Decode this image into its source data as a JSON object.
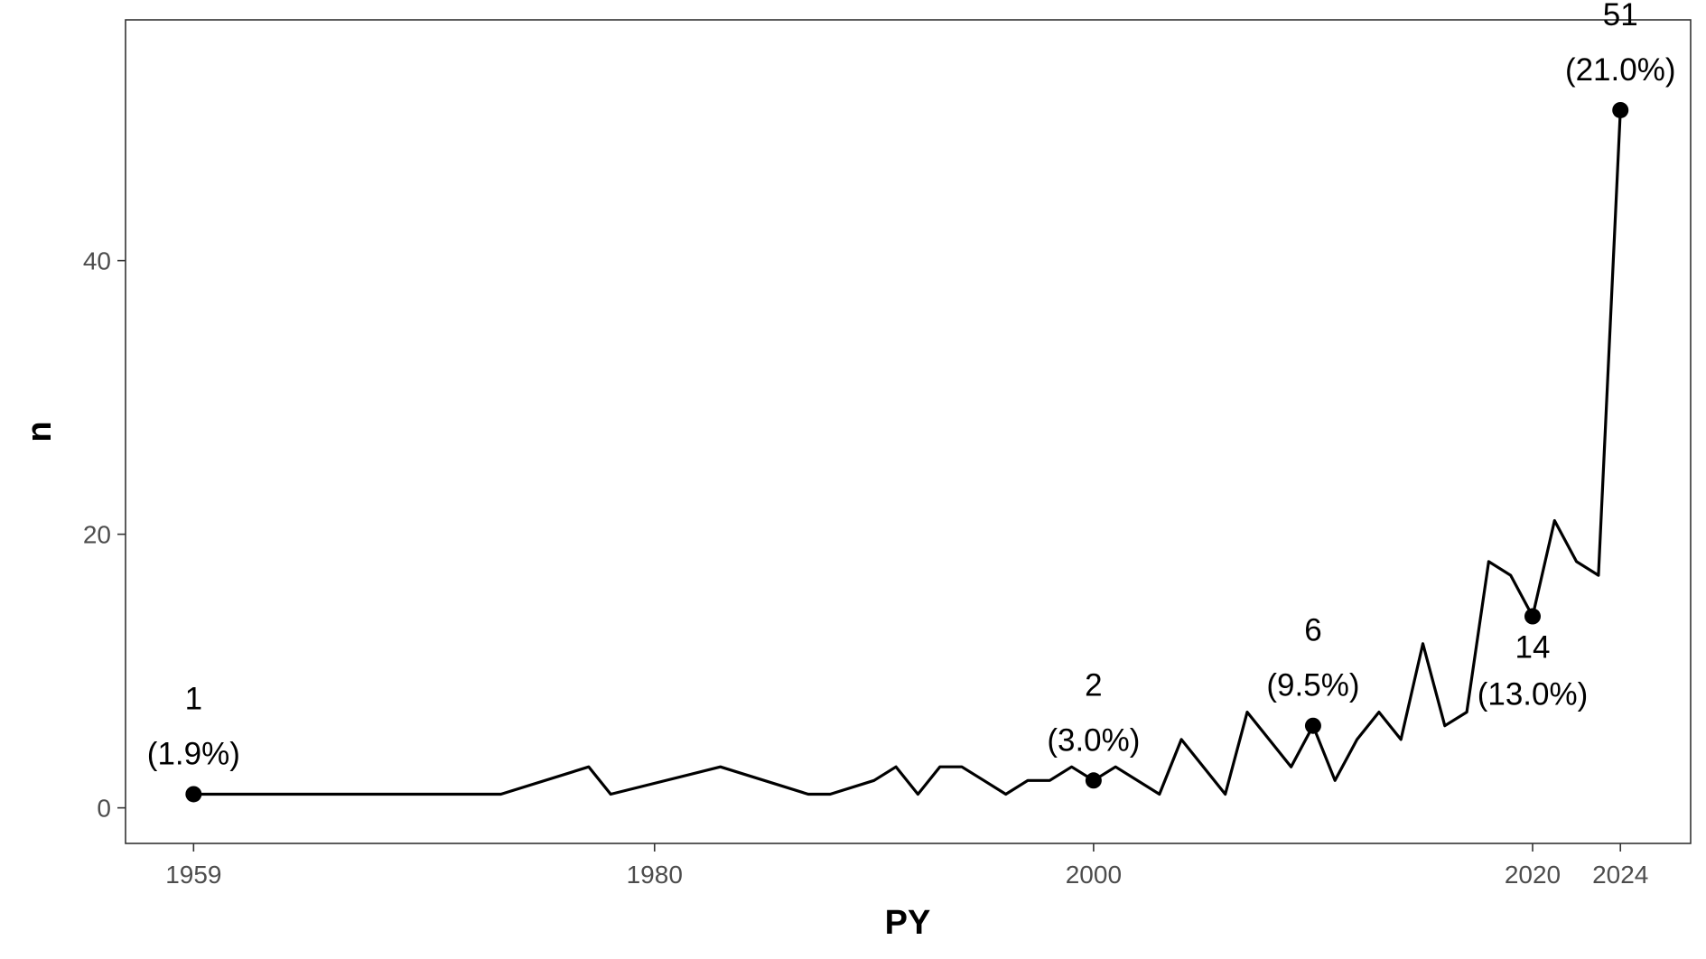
{
  "chart_data": {
    "type": "line",
    "xlabel": "PY",
    "ylabel": "n",
    "xlim": [
      1955.9,
      2027.2
    ],
    "ylim": [
      -2.6,
      57.6
    ],
    "x_ticks": [
      1959,
      1980,
      2000,
      2020,
      2024
    ],
    "y_ticks": [
      0,
      20,
      40
    ],
    "grid": false,
    "series": [
      {
        "x": [
          1959,
          1973,
          1977,
          1978,
          1983,
          1987,
          1988,
          1990,
          1991,
          1992,
          1993,
          1994,
          1995,
          1996,
          1997,
          1998,
          1999,
          2000,
          2001,
          2003,
          2004,
          2006,
          2007,
          2009,
          2010,
          2011,
          2012,
          2013,
          2014,
          2015,
          2016,
          2017,
          2018,
          2019,
          2020,
          2021,
          2022,
          2023,
          2024
        ],
        "values": [
          1,
          1,
          3,
          1,
          3,
          1,
          1,
          2,
          3,
          1,
          3,
          3,
          2,
          1,
          2,
          2,
          3,
          2,
          3,
          1,
          5,
          1,
          7,
          3,
          6,
          2,
          5,
          7,
          5,
          12,
          6,
          7,
          18,
          17,
          14,
          21,
          18,
          17,
          51
        ]
      }
    ],
    "highlighted_points": [
      {
        "x": 1959,
        "y": 1,
        "count_label": "1",
        "pct_label": "(1.9%)",
        "position": "above"
      },
      {
        "x": 2000,
        "y": 2,
        "count_label": "2",
        "pct_label": "(3.0%)",
        "position": "above"
      },
      {
        "x": 2010,
        "y": 6,
        "count_label": "6",
        "pct_label": "(9.5%)",
        "position": "above"
      },
      {
        "x": 2020,
        "y": 14,
        "count_label": "14",
        "pct_label": "(13.0%)",
        "position": "below"
      },
      {
        "x": 2024,
        "y": 51,
        "count_label": "51",
        "pct_label": "(21.0%)",
        "position": "above"
      }
    ]
  }
}
